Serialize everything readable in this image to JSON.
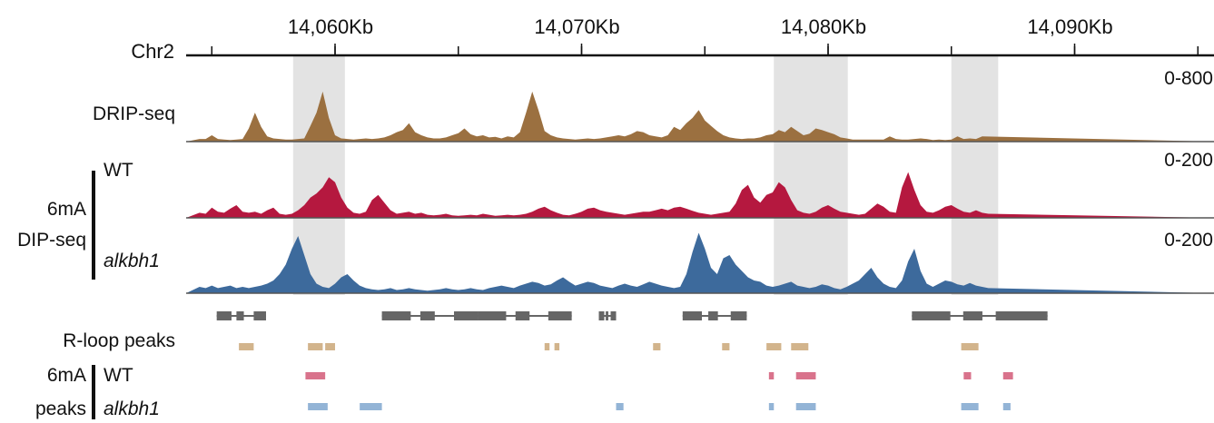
{
  "chromosome": "Chr2",
  "axis": {
    "ticks": [
      "14,060Kb",
      "14,070Kb",
      "14,080Kb",
      "14,090Kb"
    ],
    "tick_positions_kb": [
      14060,
      14070,
      14080,
      14090
    ]
  },
  "highlight_regions_kb": [
    [
      14058.3,
      14060.4
    ],
    [
      14077.8,
      14080.8
    ],
    [
      14085.0,
      14086.9
    ]
  ],
  "tracks": {
    "drip": {
      "label": "DRIP-seq",
      "range": "0-800",
      "color": "#9b7040"
    },
    "wt": {
      "label": "WT",
      "range": "0-200",
      "color": "#b5183f"
    },
    "alkbh1": {
      "label": "alkbh1",
      "range": "0-200",
      "color": "#3d6a9c"
    },
    "group_label_line1": "6mA",
    "group_label_line2": "DIP-seq"
  },
  "annotation": {
    "genes_kb": [
      [
        14055.2,
        14057.2
      ],
      [
        14061.9,
        14065.8
      ],
      [
        14065.8,
        14069.6
      ],
      [
        14070.7,
        14071.4
      ],
      [
        14074.1,
        14076.7
      ],
      [
        14083.4,
        14088.6
      ],
      [
        14086.8,
        14088.9
      ]
    ]
  },
  "rloop_peaks": {
    "label": "R-loop peaks",
    "color": "#d2b48c",
    "intervals_kb": [
      [
        14056.1,
        14056.7
      ],
      [
        14058.9,
        14059.5
      ],
      [
        14059.6,
        14060.0
      ],
      [
        14068.5,
        14068.7
      ],
      [
        14068.9,
        14069.1
      ],
      [
        14072.9,
        14073.2
      ],
      [
        14075.7,
        14076.0
      ],
      [
        14077.5,
        14078.1
      ],
      [
        14078.5,
        14079.2
      ],
      [
        14085.4,
        14086.1
      ]
    ]
  },
  "mA_peaks": {
    "label_line1": "6mA",
    "label_line2": "peaks",
    "wt": {
      "label": "WT",
      "color": "#d9738c",
      "intervals_kb": [
        [
          14058.8,
          14059.6
        ],
        [
          14077.6,
          14077.8
        ],
        [
          14078.7,
          14079.5
        ],
        [
          14085.5,
          14085.8
        ],
        [
          14087.1,
          14087.5
        ]
      ]
    },
    "alkbh1": {
      "label": "alkbh1",
      "color": "#93b4d6",
      "intervals_kb": [
        [
          14058.9,
          14059.7
        ],
        [
          14061.0,
          14061.9
        ],
        [
          14071.4,
          14071.7
        ],
        [
          14077.6,
          14077.8
        ],
        [
          14078.7,
          14079.5
        ],
        [
          14085.4,
          14086.1
        ],
        [
          14087.1,
          14087.4
        ]
      ]
    }
  },
  "coverage": {
    "x_step_kb": 0.25,
    "x_start_kb": 14054.5,
    "drip": [
      5,
      5,
      12,
      5,
      4,
      3,
      4,
      5,
      25,
      55,
      28,
      10,
      6,
      5,
      4,
      4,
      5,
      6,
      30,
      55,
      95,
      45,
      12,
      6,
      5,
      4,
      5,
      6,
      5,
      6,
      8,
      12,
      18,
      22,
      35,
      18,
      12,
      8,
      6,
      6,
      8,
      12,
      16,
      25,
      14,
      10,
      12,
      8,
      9,
      6,
      10,
      8,
      18,
      55,
      95,
      60,
      20,
      12,
      8,
      6,
      5,
      4,
      5,
      6,
      5,
      6,
      8,
      10,
      12,
      10,
      14,
      20,
      18,
      12,
      10,
      8,
      12,
      28,
      22,
      35,
      45,
      60,
      40,
      30,
      20,
      12,
      8,
      6,
      5,
      6,
      6,
      8,
      12,
      14,
      22,
      18,
      28,
      20,
      12,
      15,
      25,
      22,
      18,
      14,
      8,
      6,
      4,
      4,
      4,
      4,
      4,
      4,
      10,
      5,
      4,
      4,
      5,
      6,
      5,
      3,
      4,
      3,
      4,
      10,
      5,
      6,
      5,
      10
    ],
    "wt": [
      10,
      8,
      20,
      12,
      10,
      18,
      25,
      12,
      10,
      12,
      8,
      15,
      20,
      8,
      6,
      8,
      15,
      25,
      40,
      48,
      60,
      80,
      70,
      40,
      20,
      10,
      8,
      12,
      35,
      45,
      30,
      15,
      8,
      10,
      12,
      8,
      10,
      6,
      5,
      6,
      8,
      5,
      4,
      5,
      6,
      5,
      8,
      6,
      4,
      5,
      6,
      5,
      6,
      8,
      12,
      18,
      22,
      15,
      10,
      6,
      5,
      8,
      12,
      18,
      20,
      15,
      12,
      10,
      8,
      6,
      8,
      10,
      12,
      12,
      15,
      18,
      15,
      20,
      22,
      18,
      14,
      10,
      8,
      6,
      8,
      10,
      12,
      28,
      55,
      65,
      40,
      30,
      45,
      50,
      70,
      60,
      35,
      15,
      10,
      8,
      12,
      20,
      25,
      18,
      12,
      10,
      8,
      6,
      8,
      18,
      28,
      22,
      12,
      10,
      60,
      90,
      55,
      25,
      12,
      10,
      15,
      22,
      25,
      18,
      12,
      10,
      15,
      10,
      8
    ],
    "alkbh1": [
      10,
      8,
      12,
      8,
      10,
      12,
      8,
      10,
      8,
      10,
      12,
      15,
      20,
      30,
      45,
      70,
      90,
      60,
      30,
      15,
      10,
      8,
      15,
      25,
      30,
      20,
      12,
      8,
      6,
      5,
      6,
      8,
      5,
      6,
      8,
      6,
      5,
      4,
      5,
      6,
      8,
      6,
      5,
      6,
      8,
      6,
      5,
      8,
      10,
      12,
      10,
      8,
      12,
      15,
      18,
      16,
      12,
      14,
      20,
      25,
      18,
      12,
      15,
      18,
      16,
      12,
      10,
      8,
      12,
      15,
      12,
      10,
      14,
      18,
      15,
      12,
      10,
      8,
      10,
      30,
      65,
      95,
      70,
      40,
      30,
      55,
      60,
      45,
      35,
      25,
      20,
      18,
      12,
      10,
      12,
      15,
      18,
      12,
      10,
      8,
      10,
      14,
      12,
      8,
      6,
      10,
      15,
      20,
      30,
      40,
      25,
      15,
      10,
      8,
      20,
      50,
      70,
      35,
      15,
      10,
      15,
      20,
      18,
      14,
      12,
      16,
      12,
      10,
      8
    ]
  }
}
